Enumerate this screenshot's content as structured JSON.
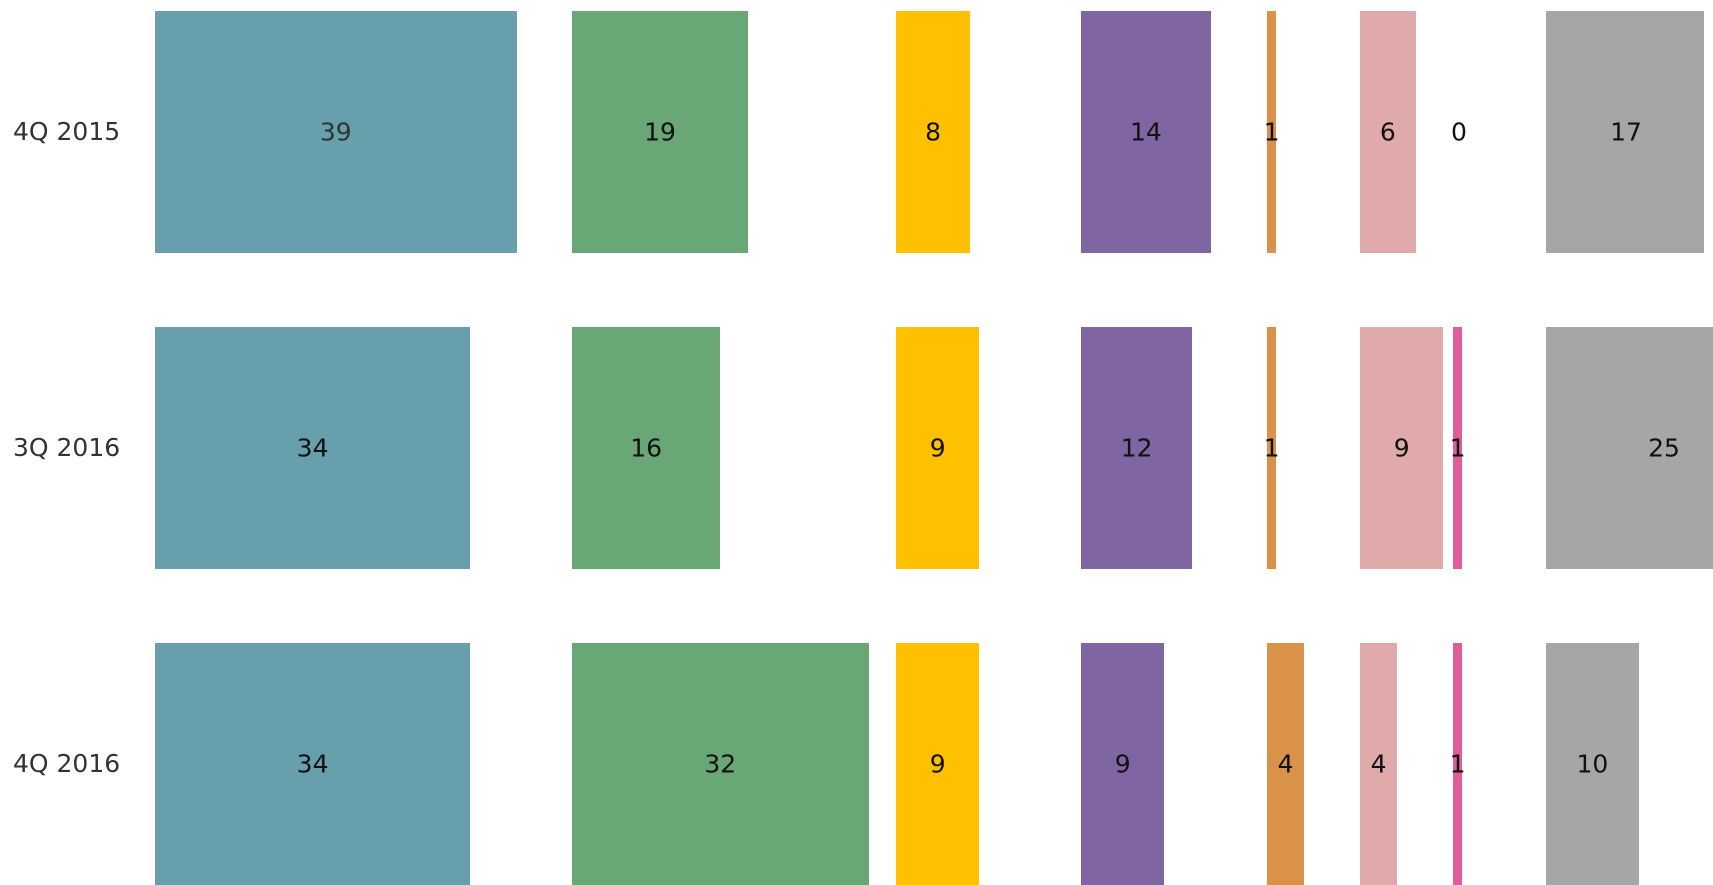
{
  "chart_data": {
    "type": "bar",
    "rows": [
      "4Q 2015",
      "3Q 2016",
      "4Q 2016"
    ],
    "series": [
      {
        "values": [
          39,
          34,
          34
        ],
        "color": "#689FAD"
      },
      {
        "values": [
          19,
          16,
          32
        ],
        "color": "#69A876"
      },
      {
        "values": [
          8,
          9,
          9
        ],
        "color": "#FFC000"
      },
      {
        "values": [
          14,
          12,
          9
        ],
        "color": "#7F65A1"
      },
      {
        "values": [
          1,
          1,
          4
        ],
        "color": "#DA914A"
      },
      {
        "values": [
          6,
          9,
          4
        ],
        "color": "#E1AAAA"
      },
      {
        "values": [
          0,
          1,
          1
        ],
        "color": "#DE5D9A"
      },
      {
        "values": [
          17,
          25,
          10
        ],
        "color": "#A6A6A6"
      }
    ],
    "xlim": [
      0,
      100
    ],
    "grid": false,
    "legend": "none"
  }
}
